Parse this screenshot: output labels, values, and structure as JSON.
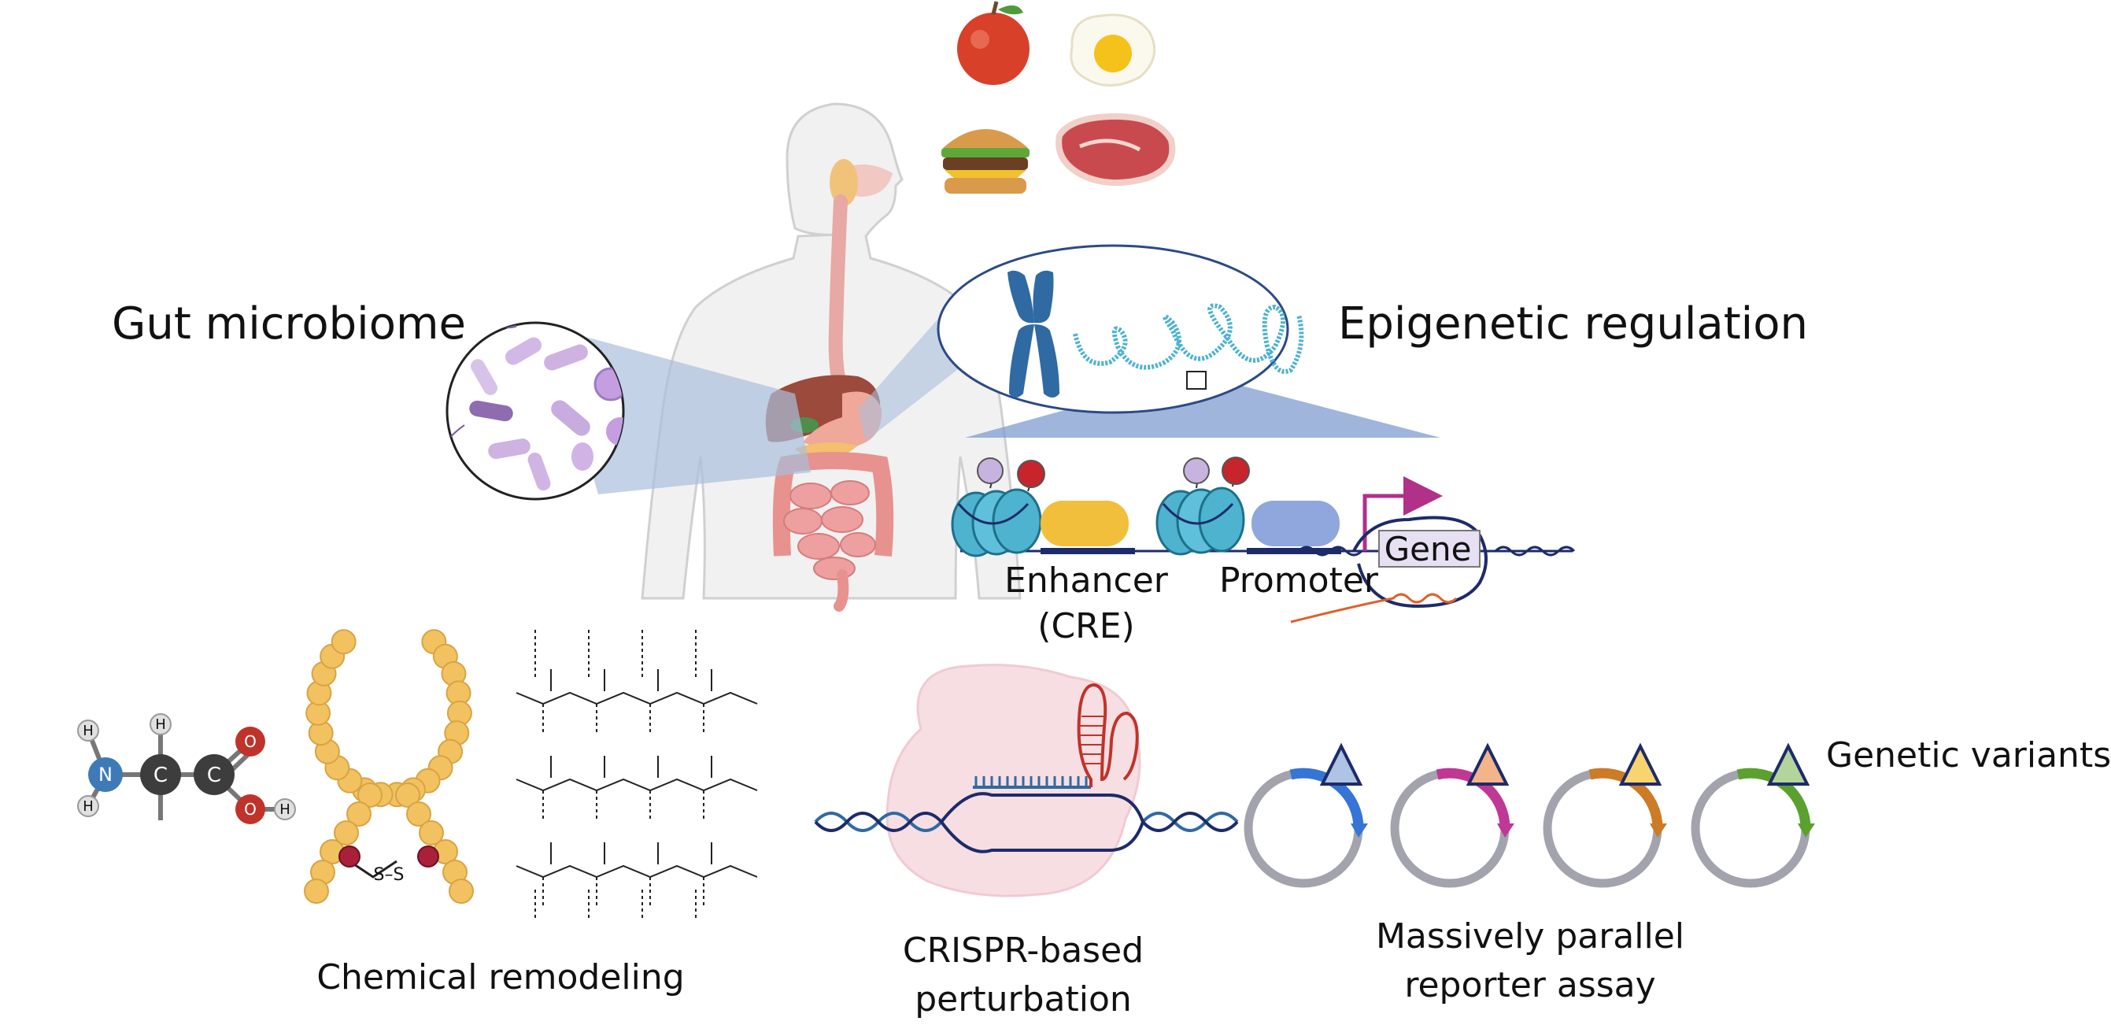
{
  "labels": {
    "gut_microbiome": "Gut microbiome",
    "epigenetic_regulation": "Epigenetic regulation",
    "enhancer": "Enhancer",
    "cre": "(CRE)",
    "promoter": "Promoter",
    "gene": "Gene",
    "chemical_remodeling": "Chemical remodeling",
    "crispr_line1": "CRISPR-based",
    "crispr_line2": "perturbation",
    "mpra_line1": "Massively parallel",
    "mpra_line2": "reporter assay",
    "genetic_variants": "Genetic variants",
    "atom_n": "N",
    "atom_c1": "C",
    "atom_c2": "C",
    "atom_o": "O",
    "atom_h": "H",
    "disulfide": "S–S"
  },
  "colors": {
    "body_fill": "#f1f1f1",
    "body_stroke": "#d0d0d0",
    "zoom_blue": "#a9bfdc",
    "zoom_blue_dark": "#7f9ccf",
    "ellipse_stroke": "#2b4a86",
    "chromosome": "#2f6aa3",
    "nucleosome": "#4db3cf",
    "enhancer_box": "#f2bf3c",
    "promoter_box": "#8fa7dc",
    "dna_navy": "#1d2b6b",
    "arrow_magenta": "#b0308a",
    "bead": "#f2c261",
    "plasmid_ring": "#a3a3ad",
    "variants": [
      "#3575d6",
      "#c03896",
      "#cc7b26",
      "#5aa12f"
    ],
    "triangles": [
      "#aec4e2",
      "#f2b488",
      "#f7d46e",
      "#b3d49a"
    ]
  }
}
